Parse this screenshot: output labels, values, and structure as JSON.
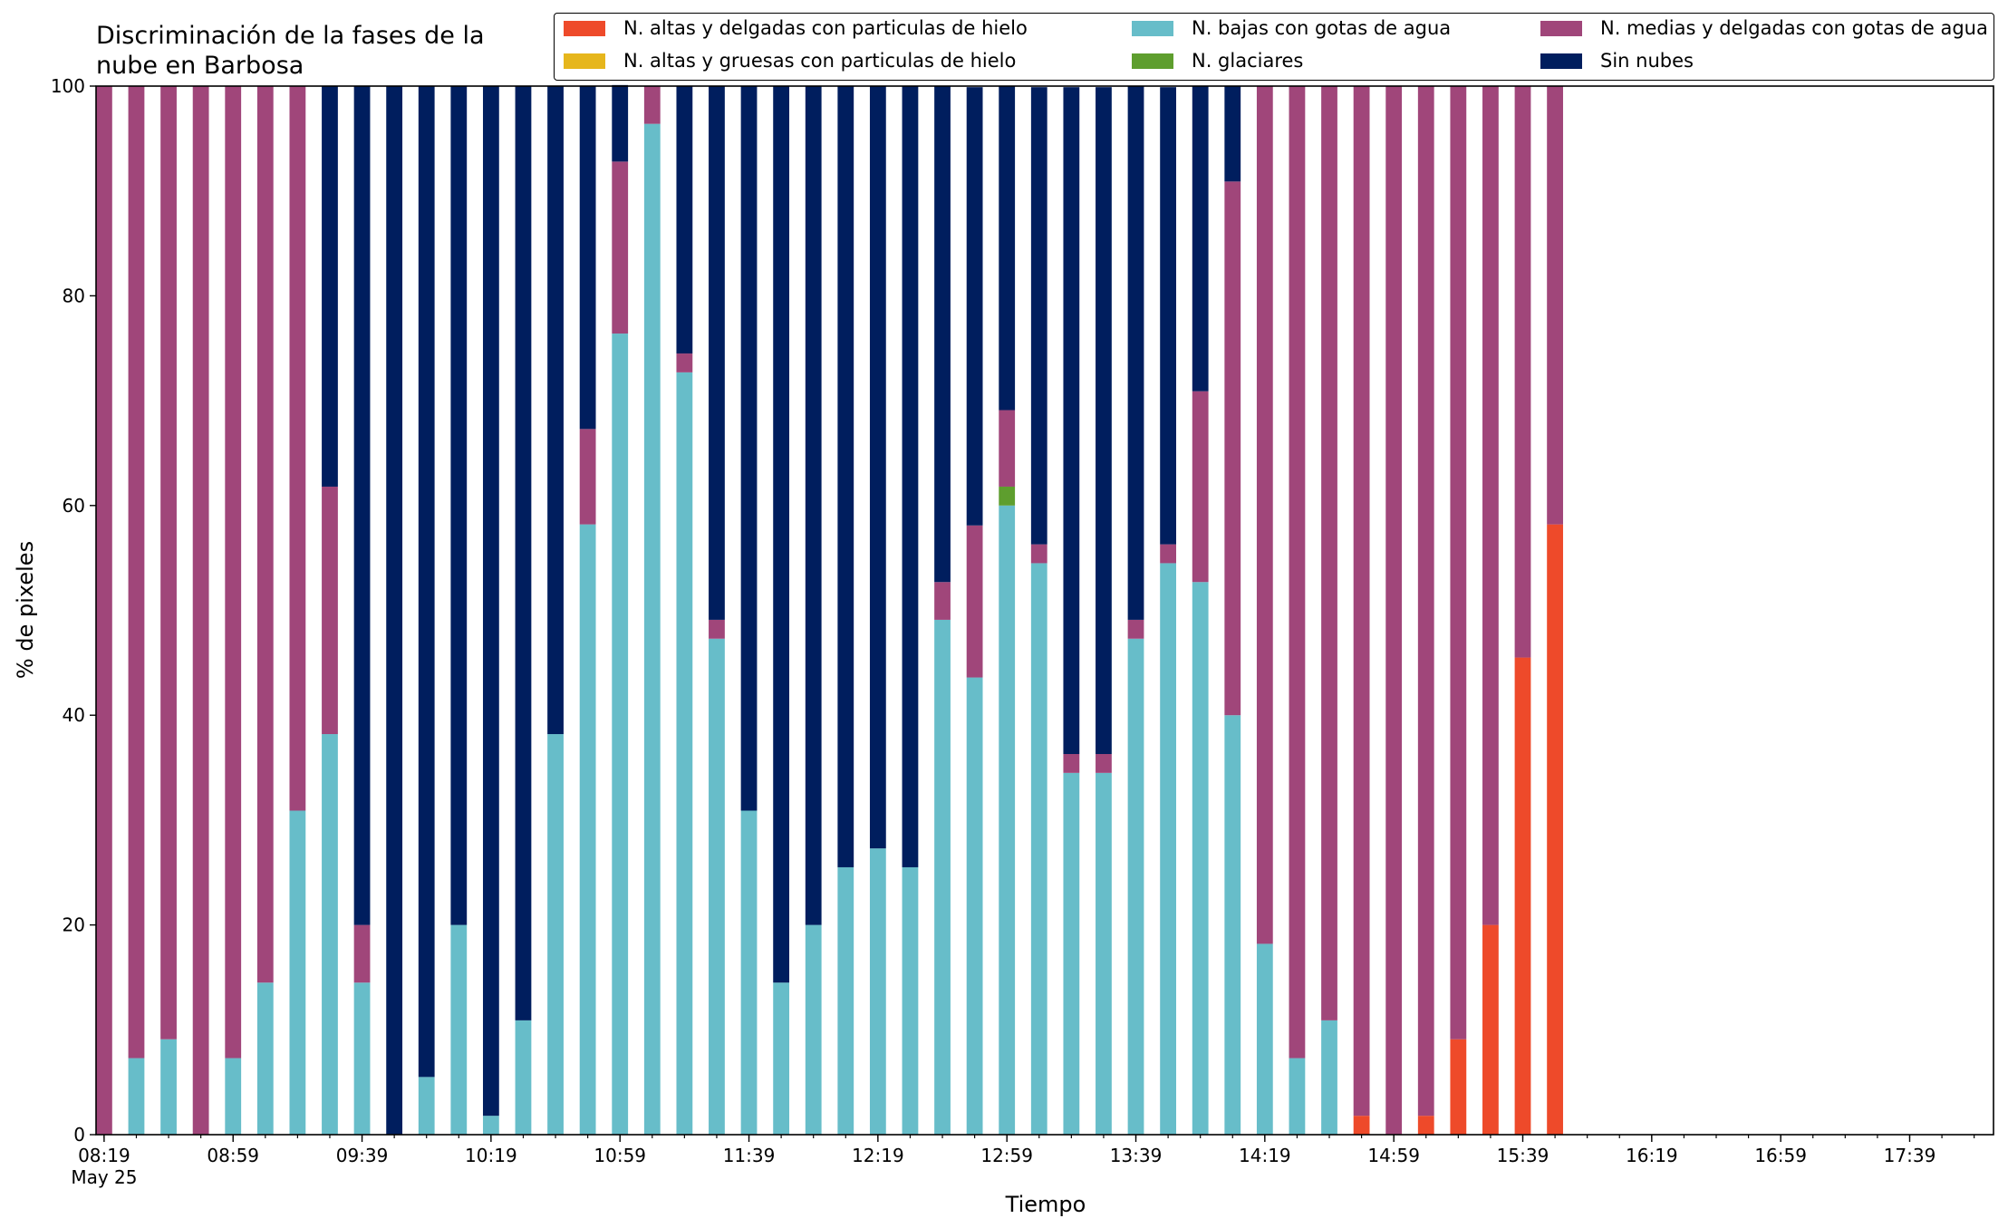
{
  "colors": {
    "altas_delgadas_hielo": "#ee4a2a",
    "altas_gruesas_hielo": "#e6b61c",
    "bajas_gotas": "#67bdc9",
    "glaciares": "#5e9e2e",
    "medias_delgadas_gotas": "#a0467a",
    "sin_nubes": "#001e5e"
  },
  "chart_data": {
    "type": "bar",
    "stacked": true,
    "title_line1": "Discriminación de la fases de la",
    "title_line2": "nube en Barbosa",
    "xlabel": "Tiempo",
    "ylabel": "% de pixeles",
    "ylim": [
      0,
      100
    ],
    "yticks": [
      "0",
      "20",
      "40",
      "60",
      "80",
      "100"
    ],
    "xtick_labels": [
      "08:19",
      "08:59",
      "09:39",
      "10:19",
      "10:59",
      "11:39",
      "12:19",
      "12:59",
      "13:39",
      "14:19",
      "14:59",
      "15:39",
      "16:19",
      "16:59",
      "17:39"
    ],
    "xtick_sublabel": "May 25",
    "x_range_slots": [
      -0.25,
      58.6
    ],
    "legend_position": "top",
    "categories": [
      "08:19",
      "08:29",
      "08:39",
      "08:49",
      "08:59",
      "09:09",
      "09:19",
      "09:29",
      "09:39",
      "09:49",
      "09:59",
      "10:09",
      "10:19",
      "10:29",
      "10:39",
      "10:49",
      "10:59",
      "11:09",
      "11:19",
      "11:29",
      "11:39",
      "11:49",
      "11:59",
      "12:09",
      "12:19",
      "12:29",
      "12:39",
      "12:49",
      "12:59",
      "13:09",
      "13:19",
      "13:29",
      "13:39",
      "13:49",
      "13:59",
      "14:09",
      "14:19",
      "14:29",
      "14:39",
      "14:49",
      "14:59",
      "15:09",
      "15:19",
      "15:29",
      "15:39",
      "15:49"
    ],
    "series": [
      {
        "name": "N. altas y delgadas con particulas de hielo",
        "color_key": "altas_delgadas_hielo",
        "values": [
          0,
          0,
          0,
          0,
          0,
          0,
          0,
          0,
          0,
          0,
          0,
          0,
          0,
          0,
          0,
          0,
          0,
          0,
          0,
          0,
          0,
          0,
          0,
          0,
          0,
          0,
          0,
          0,
          0,
          0,
          0,
          0,
          0,
          0,
          0,
          0,
          0,
          0,
          0,
          1.8,
          0,
          1.8,
          9.1,
          20,
          45.5,
          58.2
        ]
      },
      {
        "name": "N. altas y gruesas con particulas de hielo",
        "color_key": "altas_gruesas_hielo",
        "values": [
          0,
          0,
          0,
          0,
          0,
          0,
          0,
          0,
          0,
          0,
          0,
          0,
          0,
          0,
          0,
          0,
          0,
          0,
          0,
          0,
          0,
          0,
          0,
          0,
          0,
          0,
          0,
          0,
          0,
          0,
          0,
          0,
          0,
          0,
          0,
          0,
          0,
          0,
          0,
          0,
          0,
          0,
          0,
          0,
          0,
          0
        ]
      },
      {
        "name": "N. bajas con gotas de agua",
        "color_key": "bajas_gotas",
        "values": [
          0,
          7.3,
          9.1,
          0,
          7.3,
          14.5,
          30.9,
          38.2,
          14.5,
          0,
          5.5,
          20,
          1.8,
          10.9,
          38.2,
          58.2,
          76.4,
          96.4,
          72.7,
          47.3,
          30.9,
          14.5,
          20,
          25.5,
          27.3,
          25.5,
          49.1,
          43.6,
          60,
          54.5,
          34.5,
          34.5,
          47.3,
          54.5,
          52.7,
          40,
          18.2,
          7.3,
          10.9,
          0,
          0,
          0,
          0,
          0,
          0,
          0
        ]
      },
      {
        "name": "N. glaciares",
        "color_key": "glaciares",
        "values": [
          0,
          0,
          0,
          0,
          0,
          0,
          0,
          0,
          0,
          0,
          0,
          0,
          0,
          0,
          0,
          0,
          0,
          0,
          0,
          0,
          0,
          0,
          0,
          0,
          0,
          0,
          0,
          0,
          1.8,
          0,
          0,
          0,
          0,
          0,
          0,
          0,
          0,
          0,
          0,
          0,
          0,
          0,
          0,
          0,
          0,
          0
        ]
      },
      {
        "name": "N. medias y delgadas con gotas de agua",
        "color_key": "medias_delgadas_gotas",
        "values": [
          100,
          92.7,
          90.9,
          100,
          92.7,
          85.5,
          69.1,
          23.6,
          5.5,
          0,
          0,
          0,
          0,
          0,
          0,
          9.1,
          16.4,
          3.6,
          1.8,
          1.8,
          0,
          0,
          0,
          0,
          0,
          0,
          3.6,
          14.5,
          7.3,
          1.8,
          1.8,
          1.8,
          1.8,
          1.8,
          18.2,
          50.9,
          81.8,
          92.7,
          89.1,
          98.2,
          100,
          98.2,
          90.9,
          80,
          54.5,
          41.8
        ]
      },
      {
        "name": "Sin nubes",
        "color_key": "sin_nubes",
        "values": [
          0,
          0,
          0,
          0,
          0,
          0,
          0,
          38.2,
          80,
          100,
          94.5,
          80,
          98.2,
          89.1,
          61.8,
          32.7,
          7.3,
          0,
          25.5,
          50.9,
          69.1,
          85.5,
          80,
          74.5,
          72.7,
          74.5,
          47.3,
          41.8,
          30.9,
          43.6,
          63.6,
          63.6,
          50.9,
          43.6,
          29.1,
          9.1,
          0,
          0,
          0,
          0,
          0,
          0,
          0,
          0,
          0,
          0
        ]
      }
    ]
  }
}
